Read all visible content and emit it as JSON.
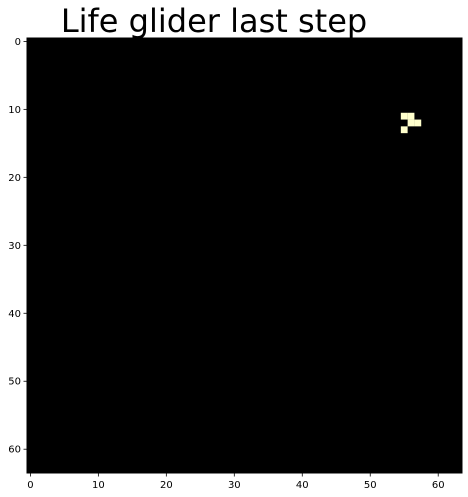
{
  "chart_data": {
    "type": "heatmap",
    "title": "Life glider last step",
    "grid_shape": [
      64,
      64
    ],
    "xlim": [
      -0.5,
      63.5
    ],
    "ylim": [
      63.5,
      -0.5
    ],
    "x_ticks": [
      0,
      10,
      20,
      30,
      40,
      50,
      60
    ],
    "y_ticks": [
      0,
      10,
      20,
      30,
      40,
      50,
      60
    ],
    "grid": false,
    "background_color": "#000000",
    "live_color": "#ffffcc",
    "live_cells": [
      [
        55,
        11
      ],
      [
        56,
        11
      ],
      [
        57,
        12
      ],
      [
        56,
        12
      ],
      [
        55,
        13
      ]
    ]
  }
}
